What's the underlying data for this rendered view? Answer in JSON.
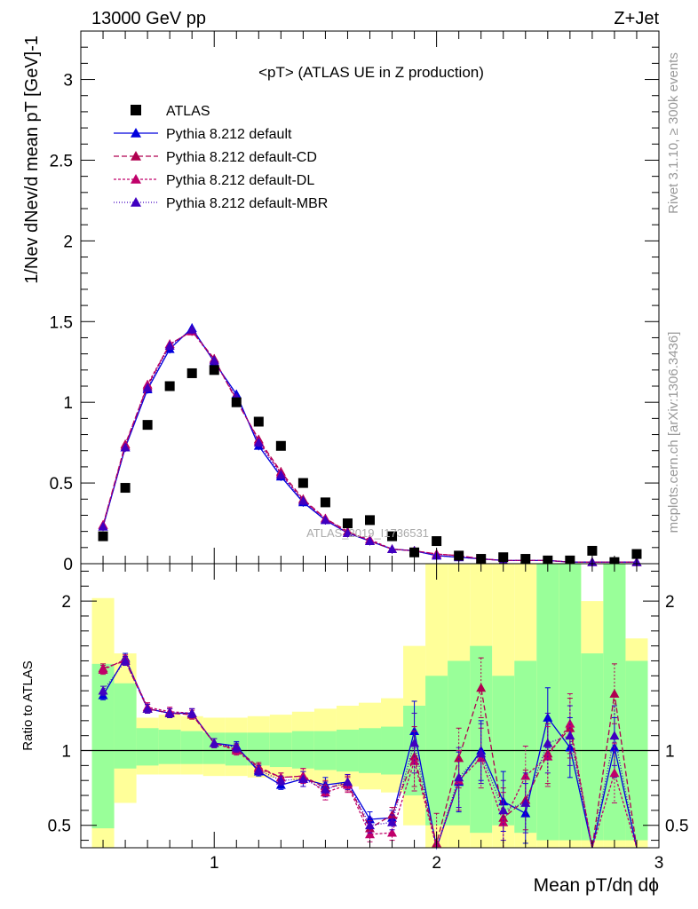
{
  "header": {
    "left": "13000 GeV pp",
    "right": "Z+Jet"
  },
  "chart_data": [
    {
      "type": "scatter",
      "title": "<pT> (ATLAS UE in Z production)",
      "ylabel": "1/Nev dNev/d mean pT [GeV]-1",
      "xlim": [
        0.4,
        3.0
      ],
      "ylim": [
        0,
        3.3
      ],
      "yticks": [
        "0",
        "0.5",
        "1",
        "1.5",
        "2",
        "2.5",
        "3"
      ],
      "legend": [
        "ATLAS",
        "Pythia 8.212 default",
        "Pythia 8.212 default-CD",
        "Pythia 8.212 default-DL",
        "Pythia 8.212 default-MBR"
      ],
      "x": [
        0.5,
        0.6,
        0.7,
        0.8,
        0.9,
        1.0,
        1.1,
        1.2,
        1.3,
        1.4,
        1.5,
        1.6,
        1.7,
        1.8,
        1.9,
        2.0,
        2.1,
        2.2,
        2.3,
        2.4,
        2.5,
        2.6,
        2.7,
        2.8,
        2.9
      ],
      "series": [
        {
          "name": "ATLAS",
          "color": "#000000",
          "values": [
            0.17,
            0.47,
            0.86,
            1.1,
            1.18,
            1.2,
            1.0,
            0.88,
            0.73,
            0.5,
            0.38,
            0.25,
            0.27,
            0.17,
            0.07,
            0.14,
            0.05,
            0.03,
            0.04,
            0.03,
            0.02,
            0.02,
            0.08,
            0.01,
            0.06
          ]
        },
        {
          "name": "Pythia 8.212 default",
          "color": "#0000dd",
          "dash": "",
          "values": [
            0.23,
            0.72,
            1.08,
            1.33,
            1.46,
            1.25,
            1.05,
            0.73,
            0.54,
            0.38,
            0.27,
            0.19,
            0.14,
            0.09,
            0.08,
            0.05,
            0.04,
            0.03,
            0.02,
            0.02,
            0.02,
            0.01,
            0.01,
            0.01,
            0.01
          ]
        },
        {
          "name": "Pythia 8.212 default-CD",
          "color": "#b00050",
          "dash": "6,3",
          "values": [
            0.24,
            0.74,
            1.1,
            1.36,
            1.44,
            1.27,
            1.01,
            0.77,
            0.57,
            0.4,
            0.28,
            0.2,
            0.14,
            0.09,
            0.08,
            0.06,
            0.05,
            0.03,
            0.02,
            0.02,
            0.02,
            0.01,
            0.01,
            0.01,
            0.01
          ]
        },
        {
          "name": "Pythia 8.212 default-DL",
          "color": "#c0006a",
          "dash": "3,2",
          "values": [
            0.24,
            0.73,
            1.11,
            1.36,
            1.44,
            1.26,
            1.02,
            0.76,
            0.56,
            0.39,
            0.28,
            0.19,
            0.15,
            0.09,
            0.08,
            0.06,
            0.05,
            0.03,
            0.02,
            0.02,
            0.02,
            0.01,
            0.01,
            0.01,
            0.01
          ]
        },
        {
          "name": "Pythia 8.212 default-MBR",
          "color": "#4000c0",
          "dash": "1,2",
          "values": [
            0.23,
            0.72,
            1.09,
            1.35,
            1.45,
            1.26,
            1.03,
            0.75,
            0.55,
            0.39,
            0.27,
            0.19,
            0.14,
            0.09,
            0.08,
            0.05,
            0.04,
            0.03,
            0.02,
            0.02,
            0.02,
            0.01,
            0.01,
            0.01,
            0.01
          ]
        }
      ]
    },
    {
      "type": "scatter",
      "ylabel": "Ratio to ATLAS",
      "xlabel": "Mean pT/dη dϕ",
      "xlim": [
        0.4,
        3.0
      ],
      "ylim": [
        0.35,
        2.25
      ],
      "xticks": [
        "1",
        "2",
        "3"
      ],
      "yticks": [
        "0.5",
        "1",
        "2"
      ],
      "x": [
        0.5,
        0.6,
        0.7,
        0.8,
        0.9,
        1.0,
        1.1,
        1.2,
        1.3,
        1.4,
        1.5,
        1.6,
        1.7,
        1.8,
        1.9,
        2.0,
        2.1,
        2.2,
        2.3,
        2.4,
        2.5,
        2.6,
        2.7,
        2.8,
        2.9
      ],
      "band_green": [
        [
          0.48,
          1.58
        ],
        [
          0.88,
          1.45
        ],
        [
          0.9,
          1.15
        ],
        [
          0.91,
          1.14
        ],
        [
          0.91,
          1.13
        ],
        [
          0.91,
          1.12
        ],
        [
          0.9,
          1.12
        ],
        [
          0.9,
          1.12
        ],
        [
          0.89,
          1.12
        ],
        [
          0.88,
          1.13
        ],
        [
          0.87,
          1.13
        ],
        [
          0.86,
          1.14
        ],
        [
          0.85,
          1.15
        ],
        [
          0.84,
          1.16
        ],
        [
          0.7,
          1.3
        ],
        [
          0.5,
          1.5
        ],
        [
          0.5,
          1.6
        ],
        [
          0.45,
          1.7
        ],
        [
          0.5,
          1.5
        ],
        [
          0.45,
          1.6
        ],
        [
          0.4,
          2.3
        ],
        [
          0.4,
          2.3
        ],
        [
          0.4,
          1.65
        ],
        [
          0.4,
          2.3
        ],
        [
          0.4,
          1.6
        ]
      ],
      "band_yellow": [
        [
          0.27,
          2.02
        ],
        [
          0.65,
          1.65
        ],
        [
          0.84,
          1.22
        ],
        [
          0.84,
          1.24
        ],
        [
          0.84,
          1.23
        ],
        [
          0.83,
          1.22
        ],
        [
          0.83,
          1.22
        ],
        [
          0.82,
          1.23
        ],
        [
          0.82,
          1.24
        ],
        [
          0.8,
          1.26
        ],
        [
          0.78,
          1.28
        ],
        [
          0.76,
          1.3
        ],
        [
          0.74,
          1.32
        ],
        [
          0.72,
          1.35
        ],
        [
          0.5,
          1.7
        ],
        [
          0.35,
          2.25
        ],
        [
          0.35,
          2.25
        ],
        [
          0.35,
          2.25
        ],
        [
          0.35,
          2.25
        ],
        [
          0.35,
          2.25
        ],
        [
          0.35,
          2.25
        ],
        [
          0.35,
          2.25
        ],
        [
          0.35,
          2.0
        ],
        [
          0.35,
          2.25
        ],
        [
          0.35,
          1.75
        ]
      ],
      "series": [
        {
          "name": "Pythia 8.212 default",
          "color": "#0000dd",
          "dash": "",
          "values": [
            1.37,
            1.62,
            1.28,
            1.25,
            1.25,
            1.05,
            1.03,
            0.86,
            0.77,
            0.81,
            0.77,
            0.79,
            0.54,
            0.55,
            1.13,
            0.3,
            0.79,
            1.0,
            0.66,
            0.58,
            1.22,
            1.02,
            0.3,
            1.02,
            0.3
          ]
        },
        {
          "name": "Pythia 8.212 default-CD",
          "color": "#b00050",
          "dash": "6,3",
          "values": [
            1.55,
            1.6,
            1.28,
            1.25,
            1.24,
            1.05,
            1.01,
            0.89,
            0.82,
            0.83,
            0.75,
            0.78,
            0.48,
            0.57,
            0.96,
            0.38,
            0.95,
            1.42,
            0.55,
            0.67,
            0.98,
            1.15,
            0.3,
            1.38,
            0.3
          ]
        },
        {
          "name": "Pythia 8.212 default-DL",
          "color": "#c0006a",
          "dash": "3,2",
          "values": [
            1.54,
            1.61,
            1.29,
            1.26,
            1.25,
            1.05,
            1.0,
            0.88,
            0.82,
            0.83,
            0.72,
            0.77,
            0.44,
            0.45,
            0.93,
            0.33,
            0.8,
            0.95,
            0.52,
            0.83,
            0.96,
            1.18,
            0.3,
            0.85,
            0.3
          ]
        },
        {
          "name": "Pythia 8.212 default-MBR",
          "color": "#4000c0",
          "dash": "1,2",
          "values": [
            1.4,
            1.6,
            1.28,
            1.25,
            1.25,
            1.05,
            1.02,
            0.87,
            0.8,
            0.81,
            0.74,
            0.79,
            0.5,
            0.52,
            1.05,
            0.32,
            0.82,
            0.98,
            0.6,
            0.65,
            1.05,
            1.1,
            0.3,
            1.1,
            0.3
          ]
        }
      ]
    }
  ],
  "side_text": {
    "rivet": "Rivet 3.1.10, ≥ 300k events",
    "mcplots": "mcplots.cern.ch [arXiv:1306.3436]",
    "watermark": "ATLAS_2019_I1736531"
  }
}
